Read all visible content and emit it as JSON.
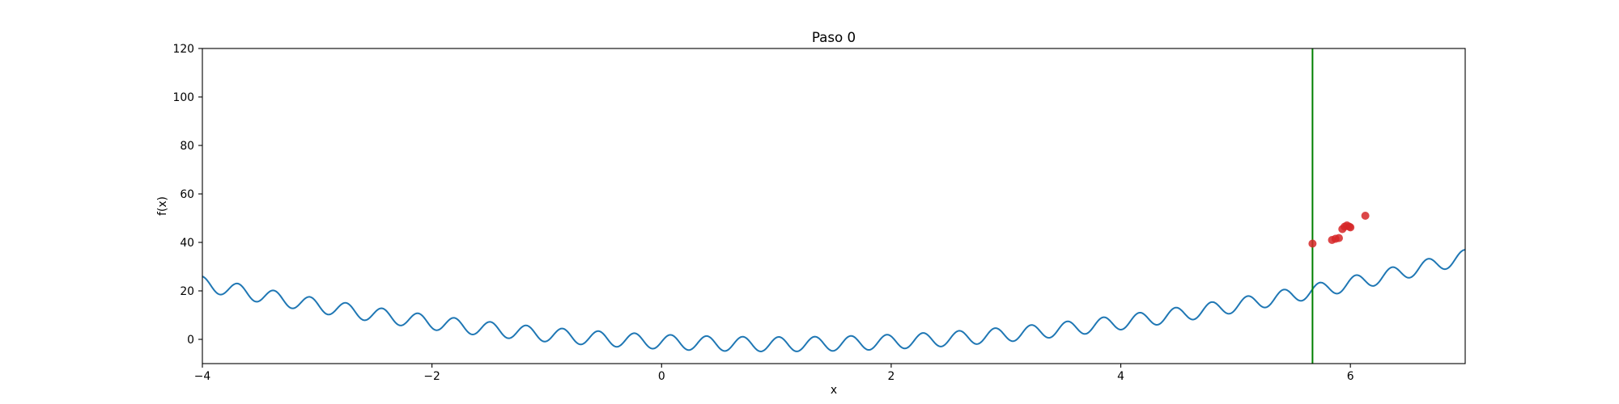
{
  "chart_data": {
    "type": "line",
    "title": "Paso 0",
    "xlabel": "x",
    "ylabel": "f(x)",
    "xlim": [
      -4,
      7
    ],
    "ylim": [
      -10,
      120
    ],
    "x_ticks": [
      -4,
      -2,
      0,
      2,
      4,
      6
    ],
    "y_ticks": [
      0,
      20,
      40,
      60,
      80,
      100,
      120
    ],
    "grid": false,
    "series": [
      {
        "color": "#1f77b4",
        "function": "(x - 1)^2 + 3*sin(20*x) - 2",
        "x_range": [
          -4,
          7
        ]
      }
    ],
    "vertical_line": {
      "x": 5.67,
      "color": "#008000"
    },
    "scatter": {
      "color": "#d62728",
      "points": [
        {
          "x": 5.67,
          "y": 39.5
        },
        {
          "x": 5.84,
          "y": 41.0
        },
        {
          "x": 5.87,
          "y": 41.5
        },
        {
          "x": 5.9,
          "y": 41.8
        },
        {
          "x": 5.93,
          "y": 45.5
        },
        {
          "x": 5.95,
          "y": 46.5
        },
        {
          "x": 5.97,
          "y": 47.0
        },
        {
          "x": 5.99,
          "y": 46.5
        },
        {
          "x": 6.0,
          "y": 46.2
        },
        {
          "x": 6.13,
          "y": 51.0
        }
      ]
    }
  }
}
